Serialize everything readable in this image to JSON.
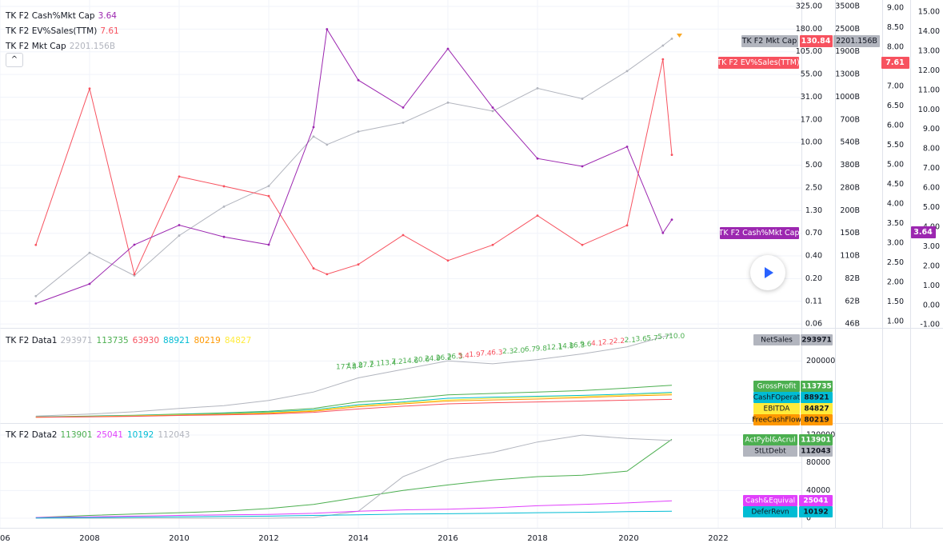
{
  "colors": {
    "mktcap": "#b2b5be",
    "evsales": "#f7525f",
    "cashmkt": "#9c27b0",
    "green": "#4caf50",
    "cyan": "#00bcd4",
    "orange": "#ff9800",
    "yellow": "#ffeb3b",
    "magenta": "#e040fb",
    "grey": "#b2b5be",
    "red": "#f7525f"
  },
  "pane1": {
    "legend": [
      {
        "name": "TK F2 Cash%Mkt Cap",
        "value": "3.64",
        "color": "#9c27b0"
      },
      {
        "name": "TK F2 EV%Sales(TTM)",
        "value": "7.61",
        "color": "#f7525f"
      },
      {
        "name": "TK F2 Mkt Cap",
        "value": "2201.156B",
        "color": "#b2b5be"
      }
    ],
    "collapse_label": "^",
    "axis1_ticks": [
      "325.00",
      "180.00",
      "105.00",
      "55.00",
      "31.00",
      "17.00",
      "10.00",
      "5.00",
      "2.50",
      "1.30",
      "0.70",
      "0.40",
      "0.20",
      "0.11",
      "0.06"
    ],
    "axis2_ticks": [
      "3500B",
      "2500B",
      "1900B",
      "1300B",
      "1000B",
      "700B",
      "540B",
      "380B",
      "280B",
      "200B",
      "150B",
      "110B",
      "82B",
      "62B",
      "46B"
    ],
    "axis3_ticks": [
      "9.00",
      "8.50",
      "8.00",
      "7.50",
      "7.00",
      "6.50",
      "6.00",
      "5.50",
      "5.00",
      "4.50",
      "4.00",
      "3.50",
      "3.00",
      "2.50",
      "2.00",
      "1.50",
      "1.00"
    ],
    "axis4_ticks": [
      "15.00",
      "14.00",
      "13.00",
      "12.00",
      "11.00",
      "10.00",
      "9.00",
      "8.00",
      "7.00",
      "6.00",
      "5.00",
      "4.00",
      "3.00",
      "2.00",
      "1.00",
      "0.00",
      "-1.00"
    ],
    "tags": {
      "mkt_name": "TK F2 Mkt Cap",
      "mkt_val1": "130.84",
      "mkt_val2": "2201.156B",
      "ev_name": "TK F2 EV%Sales(TTM)",
      "ev_val": "7.61",
      "cash_name": "TK F2 Cash%Mkt Cap",
      "cash_val": "3.64"
    }
  },
  "pane2": {
    "legend": [
      {
        "name": "TK F2 Data1",
        "value": "",
        "color": "#131722"
      },
      {
        "name": "",
        "value": "293971",
        "color": "#b2b5be"
      },
      {
        "name": "",
        "value": "113735",
        "color": "#4caf50"
      },
      {
        "name": "",
        "value": "63930",
        "color": "#f7525f"
      },
      {
        "name": "",
        "value": "88921",
        "color": "#00bcd4"
      },
      {
        "name": "",
        "value": "80219",
        "color": "#ff9800"
      },
      {
        "name": "",
        "value": "84827",
        "color": "#ffeb3b"
      }
    ],
    "axis_ticks": [
      "200000"
    ],
    "growth_labels": [
      "177.8",
      "13.8",
      "27.2",
      "7.1",
      "13.4",
      "7.2",
      "14.6",
      "20.6",
      "24.9",
      "26.2",
      "26.3",
      "5.4",
      "1.9",
      "7.4",
      "6.3",
      "2.3",
      "2.0",
      "6.7",
      "9.8",
      "12.1",
      "14.8",
      "16.3",
      "9.6",
      "4.1",
      "2.2",
      "2.2",
      "2.1",
      "3.6",
      "5.7",
      "5.7",
      "10.0"
    ],
    "tags": [
      {
        "name": "NetSales",
        "value": "293971",
        "color": "#b2b5be",
        "text": "#131722"
      },
      {
        "name": "GrossProfit",
        "value": "113735",
        "color": "#4caf50",
        "text": "#ffffff"
      },
      {
        "name": "CashFOperat",
        "value": "88921",
        "color": "#00bcd4",
        "text": "#131722"
      },
      {
        "name": "EBITDA",
        "value": "84827",
        "color": "#ffeb3b",
        "text": "#131722"
      },
      {
        "name": "FreeCashFlow",
        "value": "80219",
        "color": "#ff9800",
        "text": "#131722"
      }
    ]
  },
  "pane3": {
    "legend": [
      {
        "name": "TK F2 Data2",
        "value": "",
        "color": "#131722"
      },
      {
        "name": "",
        "value": "113901",
        "color": "#4caf50"
      },
      {
        "name": "",
        "value": "25041",
        "color": "#e040fb"
      },
      {
        "name": "",
        "value": "10192",
        "color": "#00bcd4"
      },
      {
        "name": "",
        "value": "112043",
        "color": "#b2b5be"
      }
    ],
    "axis_ticks": [
      "120000",
      "80000",
      "40000",
      "0"
    ],
    "tags": [
      {
        "name": "ActPybl&Acrul",
        "value": "113901",
        "color": "#4caf50",
        "text": "#ffffff"
      },
      {
        "name": "StLtDebt",
        "value": "112043",
        "color": "#b2b5be",
        "text": "#131722"
      },
      {
        "name": "Cash&Equival",
        "value": "25041",
        "color": "#e040fb",
        "text": "#ffffff"
      },
      {
        "name": "DeferRevn",
        "value": "10192",
        "color": "#00bcd4",
        "text": "#131722"
      }
    ]
  },
  "time_axis": [
    "06",
    "2008",
    "2010",
    "2012",
    "2014",
    "2016",
    "2018",
    "2020",
    "2022"
  ],
  "chart_data": [
    {
      "type": "line",
      "x": [
        2006.8,
        2008,
        2009,
        2010,
        2011,
        2012,
        2013,
        2013.3,
        2014,
        2015,
        2016,
        2017,
        2018,
        2019,
        2020,
        2020.8,
        2021
      ],
      "xlim": [
        2006,
        2023
      ],
      "series": [
        {
          "name": "TK F2 Mkt Cap",
          "axis": "B",
          "values": [
            60,
            110,
            80,
            140,
            210,
            280,
            560,
            500,
            600,
            680,
            900,
            800,
            1100,
            950,
            1400,
            2000,
            2201.156
          ]
        },
        {
          "name": "TK F2 EV%Sales(TTM)",
          "axis": "D",
          "values": [
            3.0,
            11.0,
            1.5,
            6.5,
            6.0,
            5.5,
            1.8,
            1.5,
            2.0,
            3.5,
            2.2,
            3.0,
            4.5,
            3.0,
            4.0,
            12.5,
            7.61
          ]
        },
        {
          "name": "TK F2 Cash%Mkt Cap",
          "axis": "C",
          "values": [
            1.5,
            2.0,
            3.0,
            3.5,
            3.2,
            3.0,
            6.0,
            8.5,
            7.2,
            6.5,
            8.0,
            6.5,
            5.2,
            5.0,
            5.5,
            3.3,
            3.64
          ]
        }
      ]
    },
    {
      "type": "line",
      "x": [
        2006.8,
        2008,
        2009,
        2010,
        2011,
        2012,
        2013,
        2014,
        2015,
        2016,
        2017,
        2018,
        2019,
        2020,
        2021
      ],
      "ylim": [
        0,
        300000
      ],
      "series": [
        {
          "name": "NetSales",
          "values": [
            5000,
            12000,
            20000,
            32000,
            42000,
            60000,
            90000,
            140000,
            170000,
            200000,
            190000,
            205000,
            225000,
            250000,
            293971
          ]
        },
        {
          "name": "GrossProfit",
          "values": [
            2000,
            5000,
            8000,
            12000,
            16000,
            22000,
            32000,
            55000,
            65000,
            80000,
            85000,
            90000,
            95000,
            104000,
            113735
          ]
        },
        {
          "name": "CashFOperat",
          "values": [
            1500,
            4000,
            7000,
            10000,
            14000,
            19000,
            27000,
            45000,
            55000,
            68000,
            72000,
            75000,
            78000,
            83000,
            88921
          ]
        },
        {
          "name": "EBITDA",
          "values": [
            1000,
            3000,
            6000,
            9000,
            12000,
            17000,
            25000,
            42000,
            52000,
            62000,
            68000,
            71000,
            74000,
            80000,
            84827
          ]
        },
        {
          "name": "FreeCashFlow",
          "values": [
            800,
            2500,
            5000,
            8000,
            11000,
            15000,
            22000,
            38000,
            48000,
            58000,
            62000,
            65000,
            70000,
            76000,
            80219
          ]
        },
        {
          "name": "",
          "values": [
            500,
            2000,
            4000,
            7000,
            9000,
            12000,
            18000,
            30000,
            40000,
            48000,
            52000,
            55000,
            58000,
            61000,
            63930
          ]
        }
      ]
    },
    {
      "type": "line",
      "x": [
        2006.8,
        2008,
        2009,
        2010,
        2011,
        2012,
        2013,
        2014,
        2015,
        2016,
        2017,
        2018,
        2019,
        2020,
        2021
      ],
      "ylim": [
        0,
        130000
      ],
      "series": [
        {
          "name": "ActPybl&Acrul",
          "values": [
            1000,
            4000,
            6000,
            8000,
            10000,
            14000,
            20000,
            30000,
            40000,
            48000,
            55000,
            60000,
            62000,
            68000,
            113901
          ]
        },
        {
          "name": "StLtDebt",
          "values": [
            0,
            0,
            0,
            0,
            0,
            0,
            1000,
            10000,
            60000,
            85000,
            95000,
            110000,
            120000,
            115000,
            112043
          ]
        },
        {
          "name": "Cash&Equival",
          "values": [
            1000,
            2000,
            3000,
            4000,
            5000,
            5500,
            7000,
            10000,
            12000,
            13000,
            15000,
            18000,
            20000,
            22000,
            25041
          ]
        },
        {
          "name": "DeferRevn",
          "values": [
            300,
            800,
            1500,
            2000,
            2500,
            3000,
            4000,
            5000,
            6000,
            6500,
            7000,
            8000,
            8500,
            9500,
            10192
          ]
        }
      ]
    }
  ]
}
